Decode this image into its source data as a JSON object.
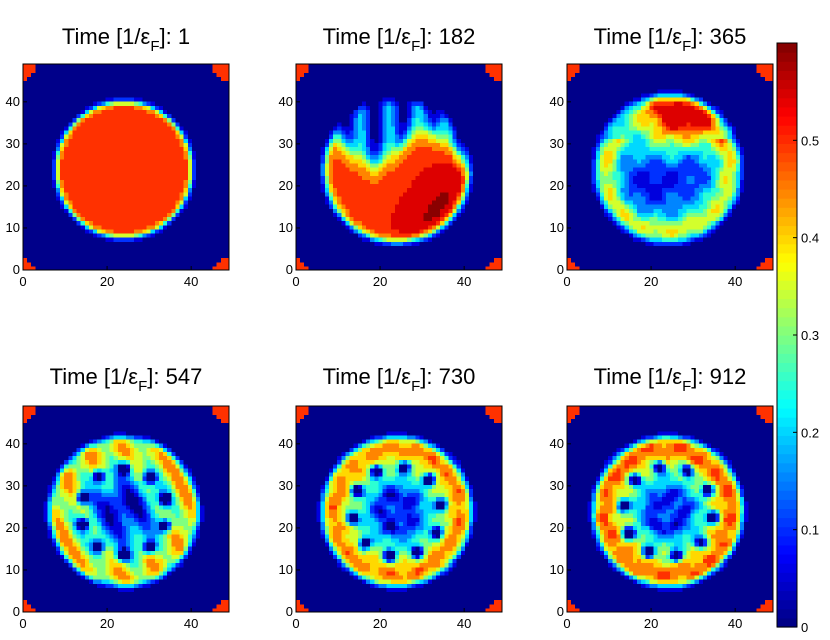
{
  "chart_data": {
    "type": "heatmap",
    "colormap": "jet",
    "colorbar": {
      "range": [
        0,
        0.6
      ],
      "ticks": [
        0,
        0.1,
        0.2,
        0.3,
        0.4,
        0.5
      ],
      "tick_labels": [
        "0",
        "0.1",
        "0.2",
        "0.3",
        "0.4",
        "0.5"
      ]
    },
    "panels": [
      {
        "title_prefix": "Time [1/ε",
        "title_sub": "F",
        "title_suffix": "]: 1",
        "time": 1,
        "pattern": "disk"
      },
      {
        "title_prefix": "Time [1/ε",
        "title_sub": "F",
        "title_suffix": "]: 182",
        "time": 182,
        "pattern": "collapse"
      },
      {
        "title_prefix": "Time [1/ε",
        "title_sub": "F",
        "title_suffix": "]: 365",
        "time": 365,
        "pattern": "swirl"
      },
      {
        "title_prefix": "Time [1/ε",
        "title_sub": "F",
        "title_suffix": "]: 547",
        "time": 547,
        "pattern": "vortices"
      },
      {
        "title_prefix": "Time [1/ε",
        "title_sub": "F",
        "title_suffix": "]: 730",
        "time": 730,
        "pattern": "lattice"
      },
      {
        "title_prefix": "Time [1/ε",
        "title_sub": "F",
        "title_suffix": "]: 912",
        "time": 912,
        "pattern": "lattice2"
      }
    ],
    "x_axis": {
      "range": [
        0,
        49
      ],
      "ticks": [
        0,
        20,
        40
      ],
      "tick_labels": [
        "0",
        "20",
        "40"
      ]
    },
    "y_axis": {
      "range": [
        0,
        49
      ],
      "ticks": [
        0,
        10,
        20,
        30,
        40
      ],
      "tick_labels": [
        "0",
        "10",
        "20",
        "30",
        "40"
      ]
    }
  }
}
